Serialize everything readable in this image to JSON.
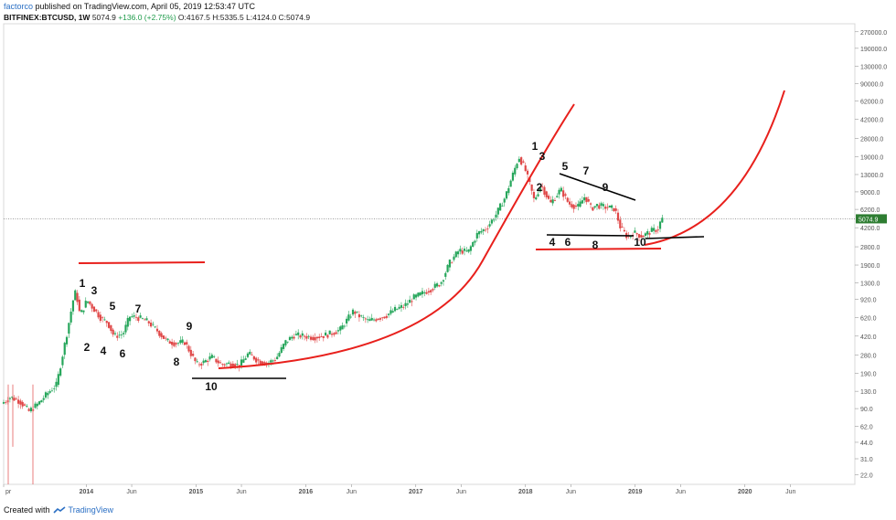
{
  "header": {
    "user": "factorco",
    "published": "published on TradingView.com, April 05, 2019 12:53:47 UTC",
    "symbol": "BITFINEX:BTCUSD, 1W",
    "last": "5074.9",
    "change": "+136.0 (+2.75%)",
    "ohlc": "O:4167.5 H:5335.5 L:4124.0 C:5074.9"
  },
  "footer": {
    "created_with": "Created with",
    "brand": "TradingView"
  },
  "colors": {
    "up": "#26a65b",
    "down": "#e04848",
    "overlay": "#e8201c",
    "line": "#000000",
    "price_tag": "#2e7d32"
  },
  "chart_data": {
    "type": "candlestick",
    "y_scale": "log",
    "ylim": [
      18,
      320000
    ],
    "y_ticks": [
      "270000.0",
      "190000.0",
      "130000.0",
      "90000.0",
      "62000.0",
      "42000.0",
      "28000.0",
      "19000.0",
      "13000.0",
      "9000.0",
      "6200.0",
      "4200.0",
      "2800.0",
      "1900.0",
      "1300.0",
      "920.0",
      "620.0",
      "420.0",
      "280.0",
      "190.0",
      "130.0",
      "90.0",
      "62.0",
      "44.0",
      "31.0",
      "22.0"
    ],
    "x_labels": [
      "pr",
      "2014",
      "Jun",
      "2015",
      "Jun",
      "2016",
      "Jun",
      "2017",
      "Jun",
      "2018",
      "Jun",
      "2019",
      "Jun",
      "2020",
      "Jun"
    ],
    "x_range": [
      "2013-04-01",
      "2020-09-01"
    ],
    "last_price": "5074.9",
    "price_path": [
      [
        "2013-04-01",
        100
      ],
      [
        "2013-05-01",
        115
      ],
      [
        "2013-06-01",
        105
      ],
      [
        "2013-07-01",
        85
      ],
      [
        "2013-08-01",
        100
      ],
      [
        "2013-09-01",
        125
      ],
      [
        "2013-10-01",
        150
      ],
      [
        "2013-11-01",
        400
      ],
      [
        "2013-11-25",
        900
      ],
      [
        "2013-12-04",
        1100
      ],
      [
        "2013-12-18",
        650
      ],
      [
        "2014-01-10",
        900
      ],
      [
        "2014-02-10",
        700
      ],
      [
        "2014-03-01",
        600
      ],
      [
        "2014-03-20",
        560
      ],
      [
        "2014-04-10",
        420
      ],
      [
        "2014-05-10",
        440
      ],
      [
        "2014-06-01",
        640
      ],
      [
        "2014-07-01",
        620
      ],
      [
        "2014-08-01",
        570
      ],
      [
        "2014-09-01",
        470
      ],
      [
        "2014-10-01",
        380
      ],
      [
        "2014-11-01",
        360
      ],
      [
        "2014-12-01",
        370
      ],
      [
        "2015-01-10",
        230
      ],
      [
        "2015-02-01",
        240
      ],
      [
        "2015-03-01",
        270
      ],
      [
        "2015-04-01",
        230
      ],
      [
        "2015-05-01",
        235
      ],
      [
        "2015-06-01",
        225
      ],
      [
        "2015-07-01",
        290
      ],
      [
        "2015-08-01",
        250
      ],
      [
        "2015-09-01",
        235
      ],
      [
        "2015-10-01",
        260
      ],
      [
        "2015-11-01",
        370
      ],
      [
        "2015-12-01",
        430
      ],
      [
        "2016-01-01",
        420
      ],
      [
        "2016-02-01",
        410
      ],
      [
        "2016-03-01",
        420
      ],
      [
        "2016-04-01",
        445
      ],
      [
        "2016-05-01",
        480
      ],
      [
        "2016-06-15",
        720
      ],
      [
        "2016-07-01",
        650
      ],
      [
        "2016-08-01",
        580
      ],
      [
        "2016-09-01",
        610
      ],
      [
        "2016-10-01",
        650
      ],
      [
        "2016-11-01",
        740
      ],
      [
        "2016-12-01",
        800
      ],
      [
        "2017-01-01",
        950
      ],
      [
        "2017-02-01",
        1050
      ],
      [
        "2017-03-01",
        1150
      ],
      [
        "2017-04-01",
        1300
      ],
      [
        "2017-05-01",
        2000
      ],
      [
        "2017-06-01",
        2600
      ],
      [
        "2017-07-01",
        2500
      ],
      [
        "2017-08-01",
        3700
      ],
      [
        "2017-09-01",
        4200
      ],
      [
        "2017-10-01",
        5500
      ],
      [
        "2017-11-01",
        8000
      ],
      [
        "2017-12-17",
        19000
      ],
      [
        "2018-01-05",
        15000
      ],
      [
        "2018-01-20",
        11000
      ],
      [
        "2018-02-06",
        7500
      ],
      [
        "2018-03-01",
        10500
      ],
      [
        "2018-04-01",
        7000
      ],
      [
        "2018-05-05",
        9500
      ],
      [
        "2018-06-01",
        7000
      ],
      [
        "2018-07-01",
        6500
      ],
      [
        "2018-07-25",
        8200
      ],
      [
        "2018-08-15",
        6300
      ],
      [
        "2018-09-01",
        6800
      ],
      [
        "2018-10-01",
        6500
      ],
      [
        "2018-11-01",
        6300
      ],
      [
        "2018-11-20",
        4200
      ],
      [
        "2018-12-15",
        3400
      ],
      [
        "2019-01-01",
        3800
      ],
      [
        "2019-02-01",
        3500
      ],
      [
        "2019-03-01",
        3900
      ],
      [
        "2019-03-25",
        4100
      ],
      [
        "2019-04-05",
        5074.9
      ]
    ]
  },
  "annotations": {
    "wave_2014": [
      "1",
      "2",
      "3",
      "4",
      "5",
      "6",
      "7",
      "8",
      "9",
      "10"
    ],
    "wave_2018": [
      "1",
      "2",
      "3",
      "4",
      "5",
      "6",
      "7",
      "8",
      "9",
      "10"
    ]
  }
}
